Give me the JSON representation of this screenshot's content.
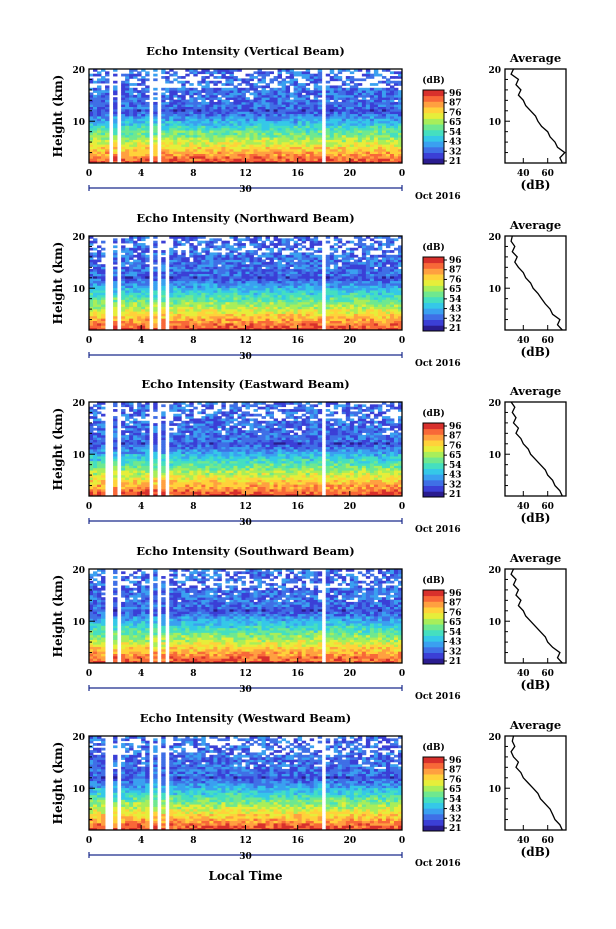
{
  "figure": {
    "xlabel": "Local Time",
    "date_label": "Oct 2016",
    "day_label": "30"
  },
  "chart_data": [
    {
      "type": "heatmap",
      "title": "Echo Intensity (Vertical Beam)",
      "ylabel": "Height (km)",
      "xlim": [
        0,
        24
      ],
      "ylim": [
        2,
        20
      ],
      "x_ticks": [
        "0",
        "4",
        "8",
        "12",
        "16",
        "20",
        "0"
      ],
      "y_ticks": [
        "10",
        "20"
      ],
      "colorbar": {
        "unit": "(dB)",
        "ticks": [
          "96",
          "87",
          "76",
          "65",
          "54",
          "43",
          "32",
          "21"
        ]
      },
      "average": {
        "title": "Average",
        "xlabel": "(dB)",
        "x_ticks": [
          "40",
          "60"
        ],
        "xlim": [
          25,
          75
        ],
        "y_ticks": [
          "10",
          "20"
        ],
        "profile": [
          [
            72,
            2
          ],
          [
            70,
            3
          ],
          [
            74,
            4
          ],
          [
            68,
            5
          ],
          [
            66,
            6
          ],
          [
            62,
            7
          ],
          [
            60,
            8
          ],
          [
            55,
            9
          ],
          [
            52,
            10
          ],
          [
            50,
            11
          ],
          [
            46,
            12
          ],
          [
            42,
            13
          ],
          [
            40,
            14
          ],
          [
            36,
            15
          ],
          [
            38,
            16
          ],
          [
            34,
            17
          ],
          [
            36,
            18
          ],
          [
            30,
            19
          ],
          [
            32,
            20
          ]
        ]
      },
      "gaps": [
        [
          1.5,
          1.9
        ],
        [
          2.3,
          2.5
        ],
        [
          4.6,
          4.9
        ],
        [
          5.2,
          5.4
        ],
        [
          5.7,
          5.9
        ],
        [
          17.8,
          18.1
        ]
      ]
    },
    {
      "type": "heatmap",
      "title": "Echo Intensity (Northward Beam)",
      "ylabel": "Height (km)",
      "xlim": [
        0,
        24
      ],
      "ylim": [
        2,
        20
      ],
      "x_ticks": [
        "0",
        "4",
        "8",
        "12",
        "16",
        "20",
        "0"
      ],
      "y_ticks": [
        "10",
        "20"
      ],
      "colorbar": {
        "unit": "(dB)",
        "ticks": [
          "96",
          "87",
          "76",
          "65",
          "54",
          "43",
          "32",
          "21"
        ]
      },
      "average": {
        "title": "Average",
        "xlabel": "(dB)",
        "x_ticks": [
          "40",
          "60"
        ],
        "xlim": [
          25,
          75
        ],
        "y_ticks": [
          "10",
          "20"
        ],
        "profile": [
          [
            72,
            2
          ],
          [
            68,
            3
          ],
          [
            70,
            4
          ],
          [
            64,
            5
          ],
          [
            62,
            6
          ],
          [
            58,
            7
          ],
          [
            55,
            8
          ],
          [
            52,
            9
          ],
          [
            48,
            10
          ],
          [
            46,
            11
          ],
          [
            42,
            12
          ],
          [
            40,
            13
          ],
          [
            36,
            14
          ],
          [
            33,
            15
          ],
          [
            35,
            16
          ],
          [
            31,
            17
          ],
          [
            33,
            18
          ],
          [
            30,
            19
          ],
          [
            31,
            20
          ]
        ]
      },
      "gaps": [
        [
          1.3,
          1.7
        ],
        [
          2.1,
          2.4
        ],
        [
          4.7,
          5.0
        ],
        [
          5.3,
          5.5
        ],
        [
          5.8,
          6.0
        ],
        [
          17.7,
          18.0
        ]
      ]
    },
    {
      "type": "heatmap",
      "title": "Echo Intensity (Eastward Beam)",
      "ylabel": "Height (km)",
      "xlim": [
        0,
        24
      ],
      "ylim": [
        2,
        20
      ],
      "x_ticks": [
        "0",
        "4",
        "8",
        "12",
        "16",
        "20",
        "0"
      ],
      "y_ticks": [
        "10",
        "20"
      ],
      "colorbar": {
        "unit": "(dB)",
        "ticks": [
          "96",
          "87",
          "76",
          "65",
          "54",
          "43",
          "32",
          "21"
        ]
      },
      "average": {
        "title": "Average",
        "xlabel": "(dB)",
        "x_ticks": [
          "40",
          "60"
        ],
        "xlim": [
          25,
          75
        ],
        "y_ticks": [
          "10",
          "20"
        ],
        "profile": [
          [
            72,
            2
          ],
          [
            70,
            3
          ],
          [
            66,
            4
          ],
          [
            64,
            5
          ],
          [
            60,
            6
          ],
          [
            58,
            7
          ],
          [
            54,
            8
          ],
          [
            50,
            9
          ],
          [
            46,
            10
          ],
          [
            44,
            11
          ],
          [
            40,
            12
          ],
          [
            38,
            13
          ],
          [
            34,
            14
          ],
          [
            36,
            15
          ],
          [
            32,
            16
          ],
          [
            34,
            17
          ],
          [
            31,
            18
          ],
          [
            33,
            19
          ],
          [
            30,
            20
          ]
        ]
      },
      "gaps": [
        [
          1.3,
          1.7
        ],
        [
          2.1,
          2.4
        ],
        [
          4.7,
          5.0
        ],
        [
          5.3,
          5.5
        ],
        [
          5.8,
          6.0
        ],
        [
          17.7,
          18.0
        ]
      ]
    },
    {
      "type": "heatmap",
      "title": "Echo Intensity (Southward Beam)",
      "ylabel": "Height (km)",
      "xlim": [
        0,
        24
      ],
      "ylim": [
        2,
        20
      ],
      "x_ticks": [
        "0",
        "4",
        "8",
        "12",
        "16",
        "20",
        "0"
      ],
      "y_ticks": [
        "10",
        "20"
      ],
      "colorbar": {
        "unit": "(dB)",
        "ticks": [
          "96",
          "87",
          "76",
          "65",
          "54",
          "43",
          "32",
          "21"
        ]
      },
      "average": {
        "title": "Average",
        "xlabel": "(dB)",
        "x_ticks": [
          "40",
          "60"
        ],
        "xlim": [
          25,
          75
        ],
        "y_ticks": [
          "10",
          "20"
        ],
        "profile": [
          [
            72,
            2
          ],
          [
            68,
            3
          ],
          [
            70,
            4
          ],
          [
            64,
            5
          ],
          [
            60,
            6
          ],
          [
            58,
            7
          ],
          [
            54,
            8
          ],
          [
            50,
            9
          ],
          [
            46,
            10
          ],
          [
            42,
            11
          ],
          [
            40,
            12
          ],
          [
            36,
            13
          ],
          [
            38,
            14
          ],
          [
            34,
            15
          ],
          [
            36,
            16
          ],
          [
            32,
            17
          ],
          [
            34,
            18
          ],
          [
            30,
            19
          ],
          [
            32,
            20
          ]
        ]
      },
      "gaps": [
        [
          1.3,
          1.7
        ],
        [
          2.1,
          2.4
        ],
        [
          4.7,
          5.0
        ],
        [
          5.3,
          5.5
        ],
        [
          5.8,
          6.0
        ],
        [
          17.7,
          18.0
        ]
      ]
    },
    {
      "type": "heatmap",
      "title": "Echo Intensity (Westward Beam)",
      "ylabel": "Height (km)",
      "xlim": [
        0,
        24
      ],
      "ylim": [
        2,
        20
      ],
      "x_ticks": [
        "0",
        "4",
        "8",
        "12",
        "16",
        "20",
        "0"
      ],
      "y_ticks": [
        "10",
        "20"
      ],
      "colorbar": {
        "unit": "(dB)",
        "ticks": [
          "96",
          "87",
          "76",
          "65",
          "54",
          "43",
          "32",
          "21"
        ]
      },
      "average": {
        "title": "Average",
        "xlabel": "(dB)",
        "x_ticks": [
          "40",
          "60"
        ],
        "xlim": [
          25,
          75
        ],
        "y_ticks": [
          "10",
          "20"
        ],
        "profile": [
          [
            72,
            2
          ],
          [
            70,
            3
          ],
          [
            66,
            4
          ],
          [
            64,
            5
          ],
          [
            62,
            6
          ],
          [
            58,
            7
          ],
          [
            54,
            8
          ],
          [
            52,
            9
          ],
          [
            48,
            10
          ],
          [
            44,
            11
          ],
          [
            40,
            12
          ],
          [
            38,
            13
          ],
          [
            34,
            14
          ],
          [
            36,
            15
          ],
          [
            32,
            16
          ],
          [
            30,
            17
          ],
          [
            33,
            18
          ],
          [
            31,
            19
          ],
          [
            32,
            20
          ]
        ]
      },
      "gaps": [
        [
          1.3,
          1.7
        ],
        [
          2.1,
          2.4
        ],
        [
          4.7,
          5.0
        ],
        [
          5.3,
          5.5
        ],
        [
          5.8,
          6.0
        ],
        [
          17.7,
          18.0
        ]
      ]
    }
  ],
  "colors": {
    "colormap": [
      "#2a1c8f",
      "#3b3fd6",
      "#3f6fe6",
      "#3aa0f0",
      "#35c8e8",
      "#45dfc0",
      "#6fe88f",
      "#a8ee5a",
      "#e6ee3a",
      "#ffd23a",
      "#ffa040",
      "#f86838",
      "#d8302c"
    ],
    "axis": "#000000",
    "line": "#000000",
    "background": "#ffffff",
    "date_axis": "#1a2b8c"
  }
}
